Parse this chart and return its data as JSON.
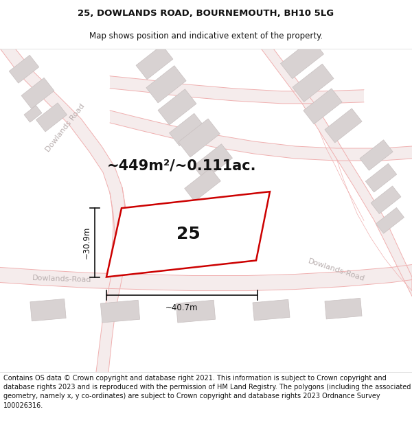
{
  "title_line1": "25, DOWLANDS ROAD, BOURNEMOUTH, BH10 5LG",
  "title_line2": "Map shows position and indicative extent of the property.",
  "footer_text": "Contains OS data © Crown copyright and database right 2021. This information is subject to Crown copyright and database rights 2023 and is reproduced with the permission of HM Land Registry. The polygons (including the associated geometry, namely x, y co-ordinates) are subject to Crown copyright and database rights 2023 Ordnance Survey 100026316.",
  "area_text": "~449m²/~0.111ac.",
  "number_text": "25",
  "dim_width": "~40.7m",
  "dim_height": "~30.9m",
  "road_label_diag": "Dowlands Road",
  "road_label_bottom_left": "Dowlands-Road",
  "road_label_bottom_right": "Dowlands-Road",
  "map_bg": "#f9f6f6",
  "building_color": "#d8d2d2",
  "building_edge": "#c8c0c0",
  "road_line_color": "#f0b0b0",
  "road_fill_color": "#f5ecec",
  "property_edge": "#cc0000",
  "property_fill": "#ffffff",
  "dim_color": "#111111",
  "text_color": "#111111",
  "road_text_color": "#b8aeae",
  "title_fontsize": 9.5,
  "subtitle_fontsize": 8.5,
  "footer_fontsize": 7.0,
  "area_fontsize": 15,
  "number_fontsize": 18,
  "dim_fontsize": 8.5,
  "road_fontsize": 8.0
}
